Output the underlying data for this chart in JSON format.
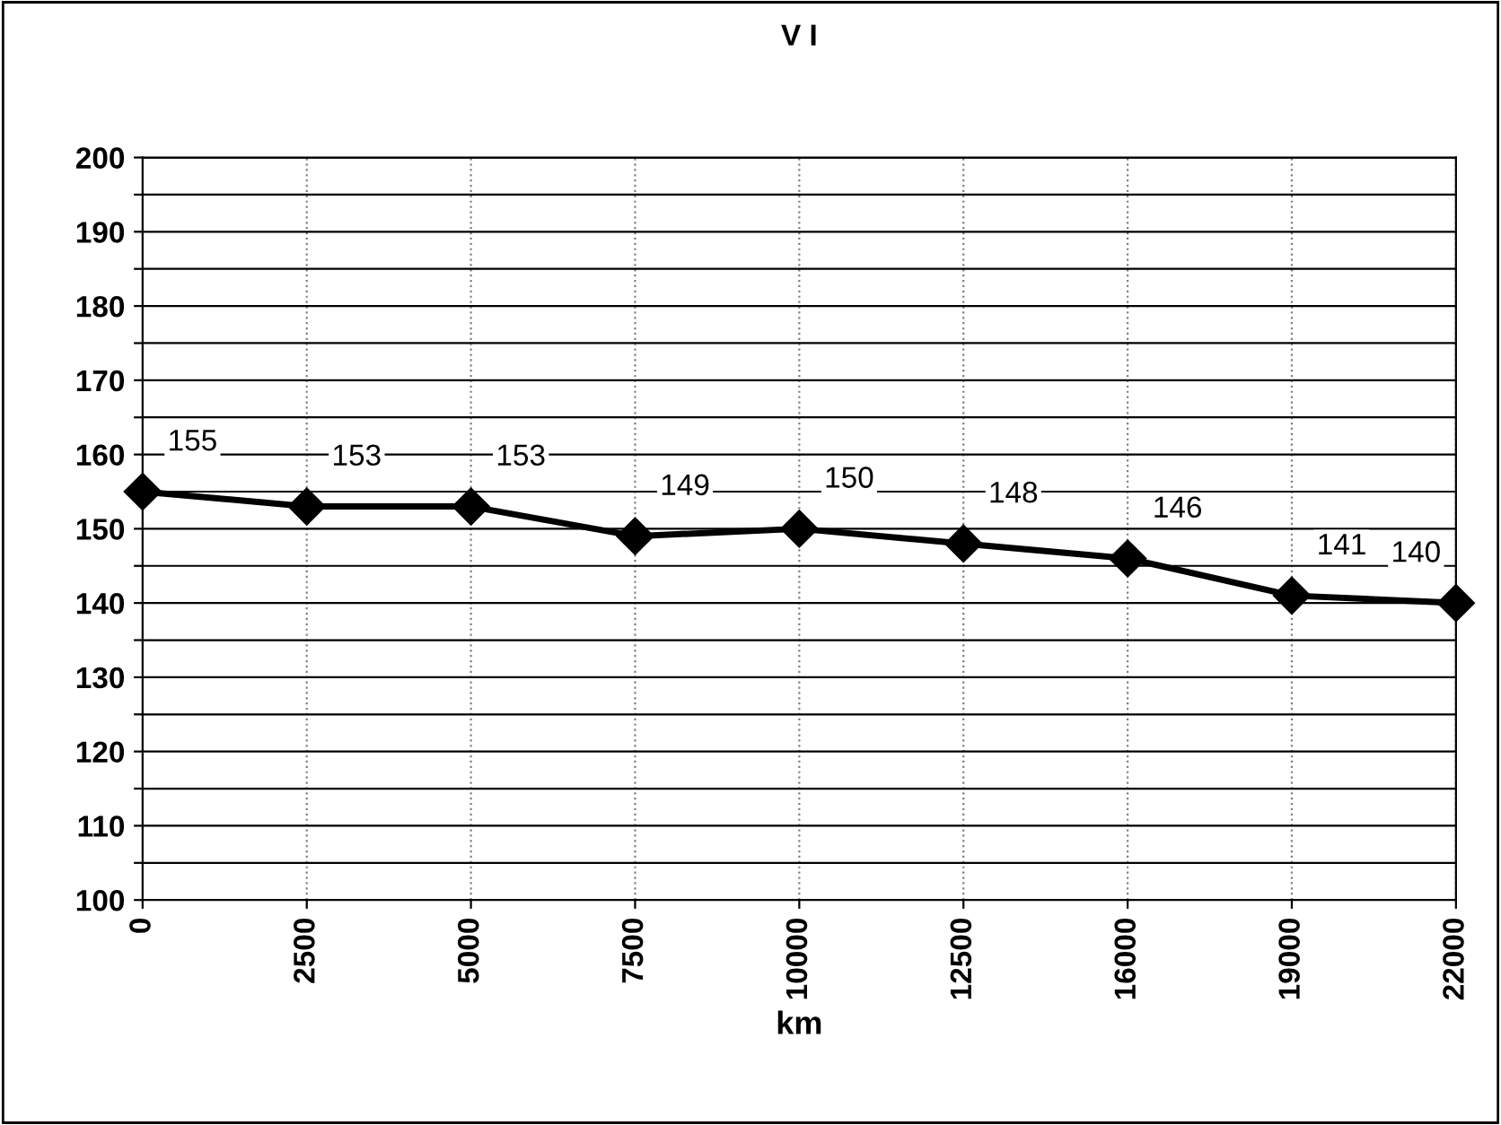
{
  "chart_data": {
    "type": "line",
    "title": "V I",
    "xlabel": "km",
    "categories": [
      "0",
      "2500",
      "5000",
      "7500",
      "10000",
      "12500",
      "16000",
      "19000",
      "22000"
    ],
    "series": [
      {
        "color": "#000000",
        "values": [
          155,
          153,
          153,
          149,
          150,
          148,
          146,
          141,
          140
        ]
      }
    ],
    "ylim": [
      100,
      200
    ],
    "yticks": [
      100,
      {
        "value": 105,
        "label": null
      },
      110,
      {
        "value": 115,
        "label": null
      },
      120,
      {
        "value": 125,
        "label": null
      },
      130,
      {
        "value": 135,
        "label": null
      },
      140,
      {
        "value": 145,
        "label": null
      },
      150,
      {
        "value": 155,
        "label": null
      },
      160,
      {
        "value": 165,
        "label": null
      },
      170,
      {
        "value": 175,
        "label": null
      },
      180,
      {
        "value": 185,
        "label": null
      },
      190,
      {
        "value": 195,
        "label": null
      },
      200
    ],
    "grid": true,
    "marker": "diamond",
    "line_style": "solid",
    "data_labels": true
  }
}
